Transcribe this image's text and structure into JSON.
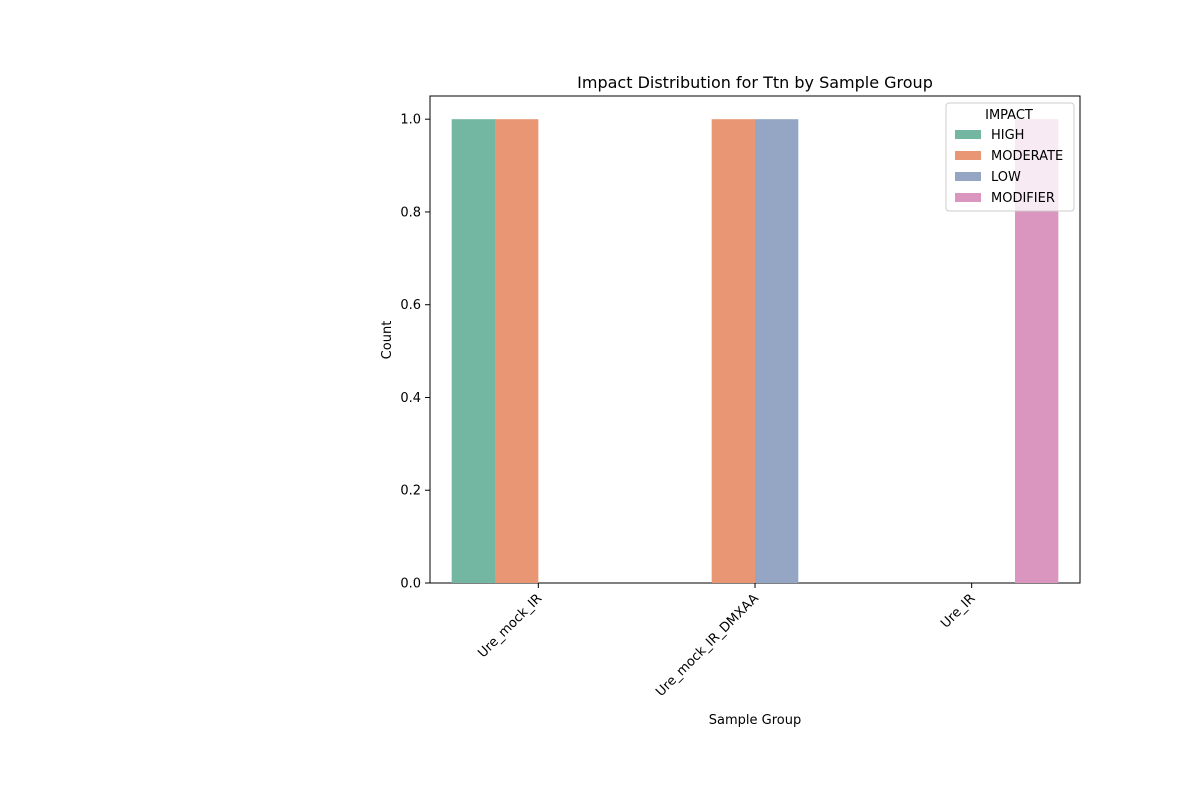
{
  "chart_data": {
    "type": "bar",
    "title": "Impact Distribution for Ttn by Sample Group",
    "xlabel": "Sample Group",
    "ylabel": "Count",
    "categories": [
      "Ure_mock_IR",
      "Ure_mock_IR_DMXAA",
      "Ure_IR"
    ],
    "ylim": [
      0,
      1.05
    ],
    "yticks": [
      "0.0",
      "0.2",
      "0.4",
      "0.6",
      "0.8",
      "1.0"
    ],
    "legend": {
      "title": "IMPACT",
      "placement": "top-right"
    },
    "grid": false,
    "series": [
      {
        "name": "HIGH",
        "color": "#73b6a1",
        "values": [
          1,
          0,
          0
        ]
      },
      {
        "name": "MODERATE",
        "color": "#e99675",
        "values": [
          1,
          1,
          0
        ]
      },
      {
        "name": "LOW",
        "color": "#95a6c4",
        "values": [
          0,
          1,
          0
        ]
      },
      {
        "name": "MODIFIER",
        "color": "#db96c0",
        "values": [
          0,
          0,
          1
        ]
      }
    ]
  }
}
